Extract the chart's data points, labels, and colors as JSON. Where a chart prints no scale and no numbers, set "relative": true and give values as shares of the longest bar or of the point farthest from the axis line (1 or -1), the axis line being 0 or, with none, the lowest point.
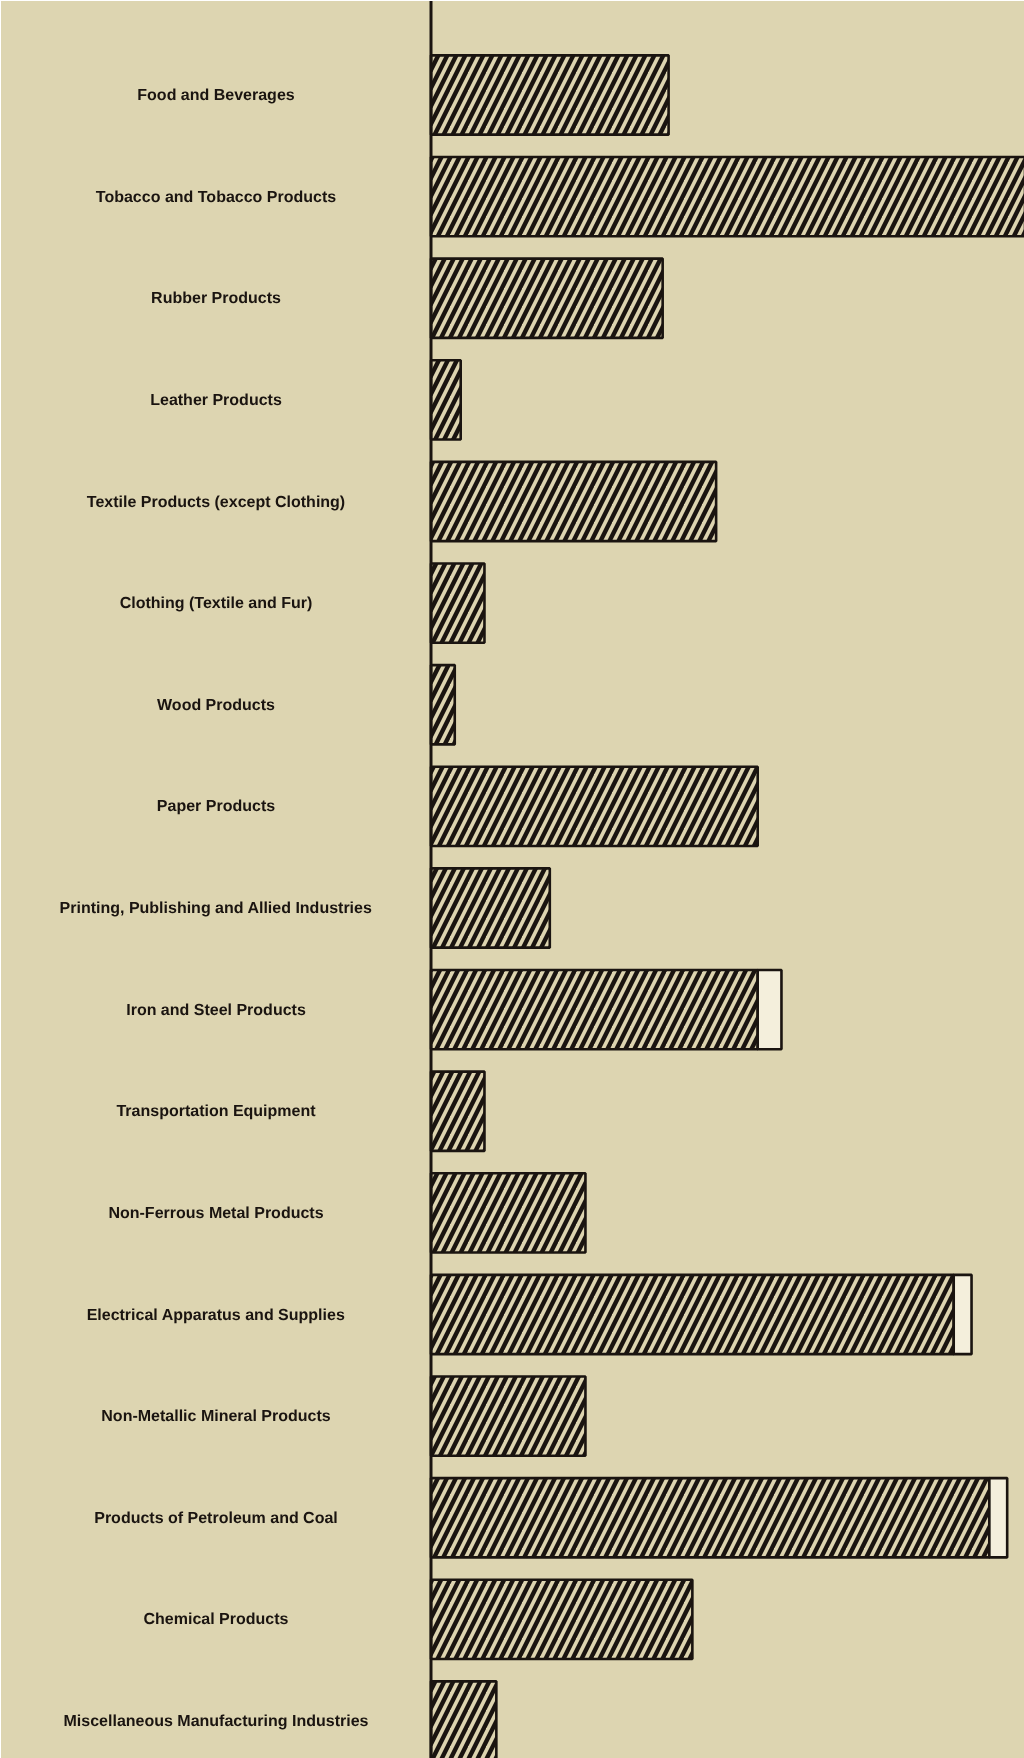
{
  "chart_data": {
    "type": "bar",
    "orientation": "horizontal",
    "stacked": true,
    "relative": true,
    "categories": [
      "Food and Beverages",
      "Tobacco and Tobacco Products",
      "Rubber Products",
      "Leather Products",
      "Textile Products (except Clothing)",
      "Clothing (Textile and Fur)",
      "Wood Products",
      "Paper Products",
      "Printing, Publishing and Allied Industries",
      "Iron and Steel Products",
      "Transportation Equipment",
      "Non-Ferrous Metal Products",
      "Electrical Apparatus and Supplies",
      "Non-Metallic Mineral Products",
      "Products of Petroleum and Coal",
      "Chemical Products",
      "Miscellaneous Manufacturing Industries"
    ],
    "series": [
      {
        "color": "#ddd4b0",
        "values": [
          0.4,
          1.0,
          0.39,
          0.05,
          0.48,
          0.09,
          0.04,
          0.55,
          0.2,
          0.55,
          0.09,
          0.26,
          0.88,
          0.26,
          0.94,
          0.44,
          0.11
        ]
      },
      {
        "color": "#f4efdc",
        "values": [
          null,
          null,
          null,
          null,
          null,
          null,
          null,
          null,
          null,
          0.04,
          null,
          null,
          0.03,
          null,
          0.03,
          null,
          null
        ]
      }
    ]
  }
}
